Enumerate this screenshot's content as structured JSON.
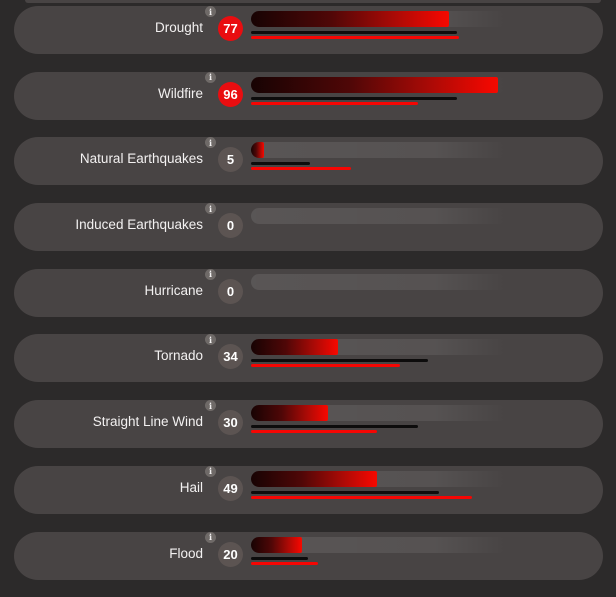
{
  "scale": {
    "min": 0,
    "max": 100
  },
  "icons": {
    "info": "i"
  },
  "colors": {
    "page_bg": "#2c2a2a",
    "row_bg": "#484444",
    "badge_red": "#e90d10",
    "badge_gray": "#5c5452",
    "info_icon_bg": "#6f6a68",
    "score_bar_gradient_start": "#170303",
    "score_bar_gradient_end": "#f40a00",
    "black_line": "#0d0c0c",
    "red_line": "#f50603",
    "label_text": "#f3f1f1"
  },
  "rows": [
    {
      "label": "Drought",
      "score": 77,
      "badge_color": "red",
      "black_line_pct": 80,
      "red_line_pct": 81
    },
    {
      "label": "Wildfire",
      "score": 96,
      "badge_color": "red",
      "black_line_pct": 80,
      "red_line_pct": 65
    },
    {
      "label": "Natural Earthquakes",
      "score": 5,
      "badge_color": "gray",
      "black_line_pct": 23,
      "red_line_pct": 39
    },
    {
      "label": "Induced Earthquakes",
      "score": 0,
      "badge_color": "gray",
      "black_line_pct": null,
      "red_line_pct": null
    },
    {
      "label": "Hurricane",
      "score": 0,
      "badge_color": "gray",
      "black_line_pct": null,
      "red_line_pct": null
    },
    {
      "label": "Tornado",
      "score": 34,
      "badge_color": "gray",
      "black_line_pct": 69,
      "red_line_pct": 58
    },
    {
      "label": "Straight Line Wind",
      "score": 30,
      "badge_color": "gray",
      "black_line_pct": 65,
      "red_line_pct": 49
    },
    {
      "label": "Hail",
      "score": 49,
      "badge_color": "gray",
      "black_line_pct": 73,
      "red_line_pct": 86
    },
    {
      "label": "Flood",
      "score": 20,
      "badge_color": "gray",
      "black_line_pct": 22,
      "red_line_pct": 26
    }
  ],
  "chart_data": {
    "type": "bar",
    "orientation": "horizontal",
    "title": "",
    "categories": [
      "Drought",
      "Wildfire",
      "Natural Earthquakes",
      "Induced Earthquakes",
      "Hurricane",
      "Tornado",
      "Straight Line Wind",
      "Hail",
      "Flood"
    ],
    "series": [
      {
        "name": "hazard-score-bar",
        "values": [
          77,
          96,
          5,
          0,
          0,
          34,
          30,
          49,
          20
        ]
      },
      {
        "name": "black-comparison-line",
        "values": [
          80,
          80,
          23,
          null,
          null,
          69,
          65,
          73,
          22
        ]
      },
      {
        "name": "red-comparison-line",
        "values": [
          81,
          65,
          39,
          null,
          null,
          58,
          49,
          86,
          26
        ]
      }
    ],
    "xlim": [
      0,
      100
    ],
    "grid": false,
    "legend": "none",
    "value_labels": "score shown in circular badge beside each category"
  }
}
